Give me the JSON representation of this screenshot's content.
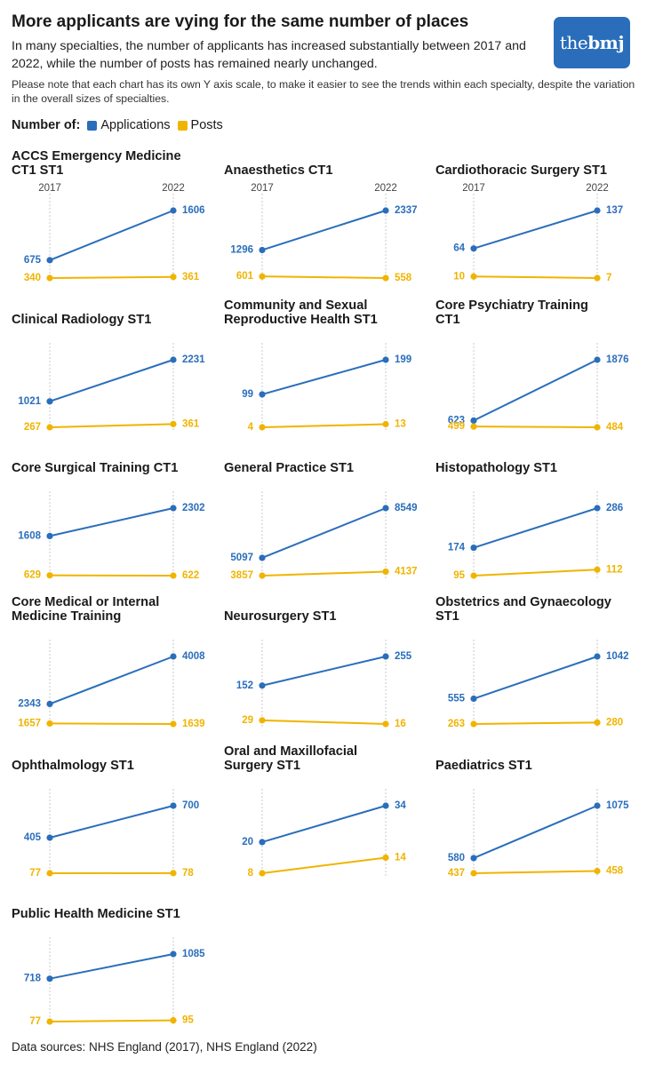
{
  "header": {
    "title": "More applicants are vying for the same number of places",
    "subtitle": "In many specialties, the number of applicants has increased substantially between 2017 and 2022, while the number of posts has remained nearly unchanged.",
    "note": "Please note that each chart has its own Y axis scale, to make it easier to see the trends within each specialty, despite the variation in the overall sizes of specialties.",
    "logo_prefix": "the",
    "logo_bold": "bmj"
  },
  "legend": {
    "lead": "Number of:",
    "applications": "Applications",
    "posts": "Posts"
  },
  "colors": {
    "applications": "#2a6ebb",
    "posts": "#f0b400",
    "grid": "#c8c8c8"
  },
  "source": "Data sources: NHS England (2017), NHS England (2022)",
  "chart_data": {
    "type": "line",
    "x": [
      "2017",
      "2022"
    ],
    "series_names": [
      "Applications",
      "Posts"
    ],
    "panels": [
      {
        "title": "ACCS Emergency Medicine CT1 ST1",
        "applications": [
          675,
          1606
        ],
        "posts": [
          340,
          361
        ],
        "show_years": true
      },
      {
        "title": "Anaesthetics CT1",
        "applications": [
          1296,
          2337
        ],
        "posts": [
          601,
          558
        ],
        "show_years": true
      },
      {
        "title": "Cardiothoracic Surgery ST1",
        "applications": [
          64,
          137
        ],
        "posts": [
          10,
          7
        ],
        "show_years": true
      },
      {
        "title": "Clinical Radiology ST1",
        "applications": [
          1021,
          2231
        ],
        "posts": [
          267,
          361
        ]
      },
      {
        "title": "Community and Sexual Reproductive Health ST1",
        "applications": [
          99,
          199
        ],
        "posts": [
          4,
          13
        ]
      },
      {
        "title": "Core Psychiatry Training CT1",
        "applications": [
          623,
          1876
        ],
        "posts": [
          499,
          484
        ]
      },
      {
        "title": "Core Surgical Training CT1",
        "applications": [
          1608,
          2302
        ],
        "posts": [
          629,
          622
        ]
      },
      {
        "title": "General Practice ST1",
        "applications": [
          5097,
          8549
        ],
        "posts": [
          3857,
          4137
        ]
      },
      {
        "title": "Histopathology ST1",
        "applications": [
          174,
          286
        ],
        "posts": [
          95,
          112
        ]
      },
      {
        "title": "Core Medical or Internal Medicine Training",
        "applications": [
          2343,
          4008
        ],
        "posts": [
          1657,
          1639
        ]
      },
      {
        "title": "Neurosurgery ST1",
        "applications": [
          152,
          255
        ],
        "posts": [
          29,
          16
        ]
      },
      {
        "title": "Obstetrics and Gynaecology ST1",
        "applications": [
          555,
          1042
        ],
        "posts": [
          263,
          280
        ]
      },
      {
        "title": "Ophthalmology ST1",
        "applications": [
          405,
          700
        ],
        "posts": [
          77,
          78
        ]
      },
      {
        "title": "Oral and Maxillofacial Surgery ST1",
        "applications": [
          20,
          34
        ],
        "posts": [
          8,
          14
        ]
      },
      {
        "title": "Paediatrics ST1",
        "applications": [
          580,
          1075
        ],
        "posts": [
          437,
          458
        ]
      },
      {
        "title": "Public Health Medicine ST1",
        "applications": [
          718,
          1085
        ],
        "posts": [
          77,
          95
        ]
      }
    ]
  }
}
